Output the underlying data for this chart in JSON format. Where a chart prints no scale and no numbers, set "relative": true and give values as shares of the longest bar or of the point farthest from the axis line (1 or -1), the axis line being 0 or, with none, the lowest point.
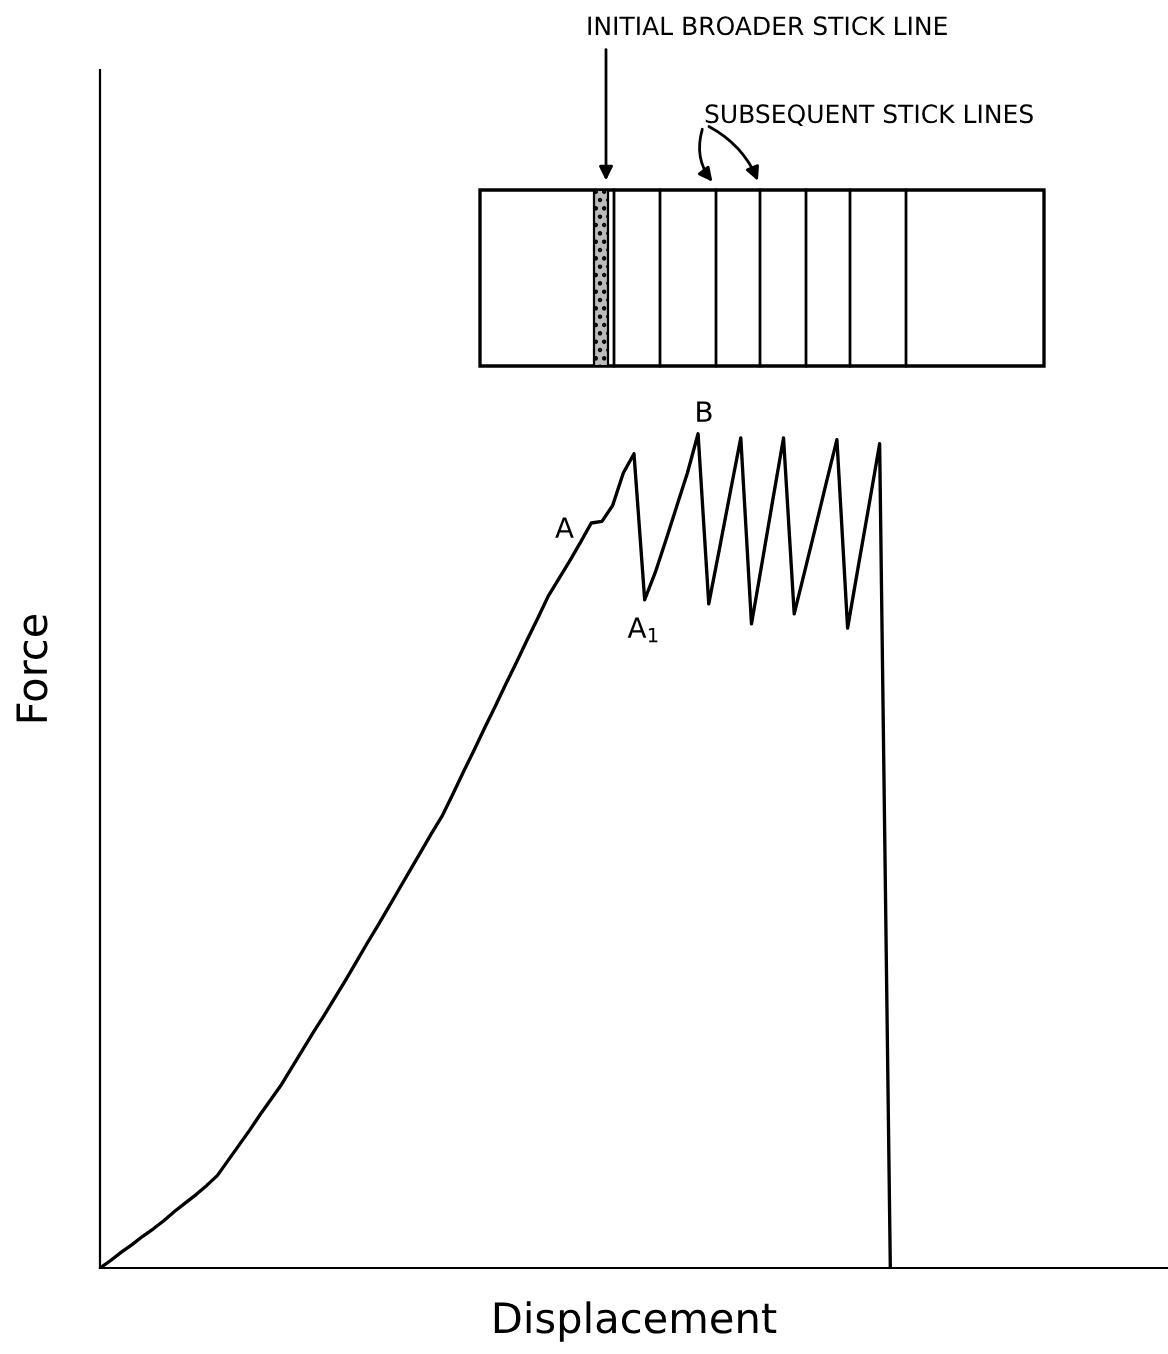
{
  "chart_data": {
    "type": "line",
    "relative": true,
    "xlabel": "Displacement",
    "ylabel": "Force",
    "tick_labels": false,
    "legend": false,
    "marker": "none",
    "line_style": "solid",
    "categories": [
      null,
      null,
      null,
      null,
      null,
      null,
      null,
      null,
      null,
      null,
      null,
      null,
      null,
      null,
      null,
      null,
      null,
      null,
      null,
      null,
      null,
      null,
      null,
      null,
      null,
      null,
      null,
      null,
      null,
      null,
      null,
      null,
      null,
      null,
      null,
      null,
      null,
      null,
      null,
      null,
      null,
      null,
      null,
      null,
      null,
      null,
      null,
      null,
      null,
      null,
      null,
      null,
      null,
      null,
      null,
      null,
      null,
      null,
      null,
      null,
      null,
      null,
      null,
      null,
      null,
      null,
      null,
      null,
      null,
      null,
      null,
      null,
      null,
      null,
      null,
      null,
      null,
      null,
      null,
      null,
      null,
      null,
      null,
      null,
      null,
      null,
      null,
      null,
      null,
      null,
      null,
      null,
      null,
      null,
      null,
      null,
      null,
      null,
      null,
      null,
      null
    ],
    "series": [
      {
        "color": "#000000",
        "values": [
          0,
          0.009,
          0.019,
          0.028,
          0.038,
          0.047,
          0.057,
          0.068,
          0.078,
          0.088,
          0.099,
          0.111,
          0.129,
          0.147,
          0.165,
          0.184,
          0.202,
          0.22,
          0.241,
          0.262,
          0.283,
          0.303,
          0.324,
          0.345,
          0.367,
          0.389,
          0.41,
          0.432,
          0.454,
          0.476,
          0.498,
          0.52,
          0.541,
          0.567,
          0.594,
          0.62,
          0.647,
          0.673,
          0.7,
          0.726,
          0.753,
          0.779,
          0.806,
          0.827,
          0.848,
          0.87,
          0.893,
          0.895,
          0.914,
          0.953,
          0.976,
          0.801,
          0.834,
          0.873,
          0.913,
          0.953,
          1.0,
          0.796,
          0.862,
          0.929,
          0.995,
          0.772,
          0.846,
          0.921,
          0.995,
          0.784,
          0.836,
          0.888,
          0.941,
          0.993,
          0.767,
          0.841,
          0.914,
          0.988,
          0,
          null,
          null,
          null,
          null,
          null,
          null,
          null,
          null,
          null,
          null,
          null,
          null,
          null,
          null,
          null,
          null,
          null,
          null,
          null,
          null,
          null,
          null,
          null,
          null,
          null,
          null
        ]
      }
    ],
    "annotations": [
      "A",
      "A$_{1}$",
      "B",
      "INITIAL BROADER STICK LINE",
      "SUBSEQUENT STICK LINES"
    ]
  }
}
